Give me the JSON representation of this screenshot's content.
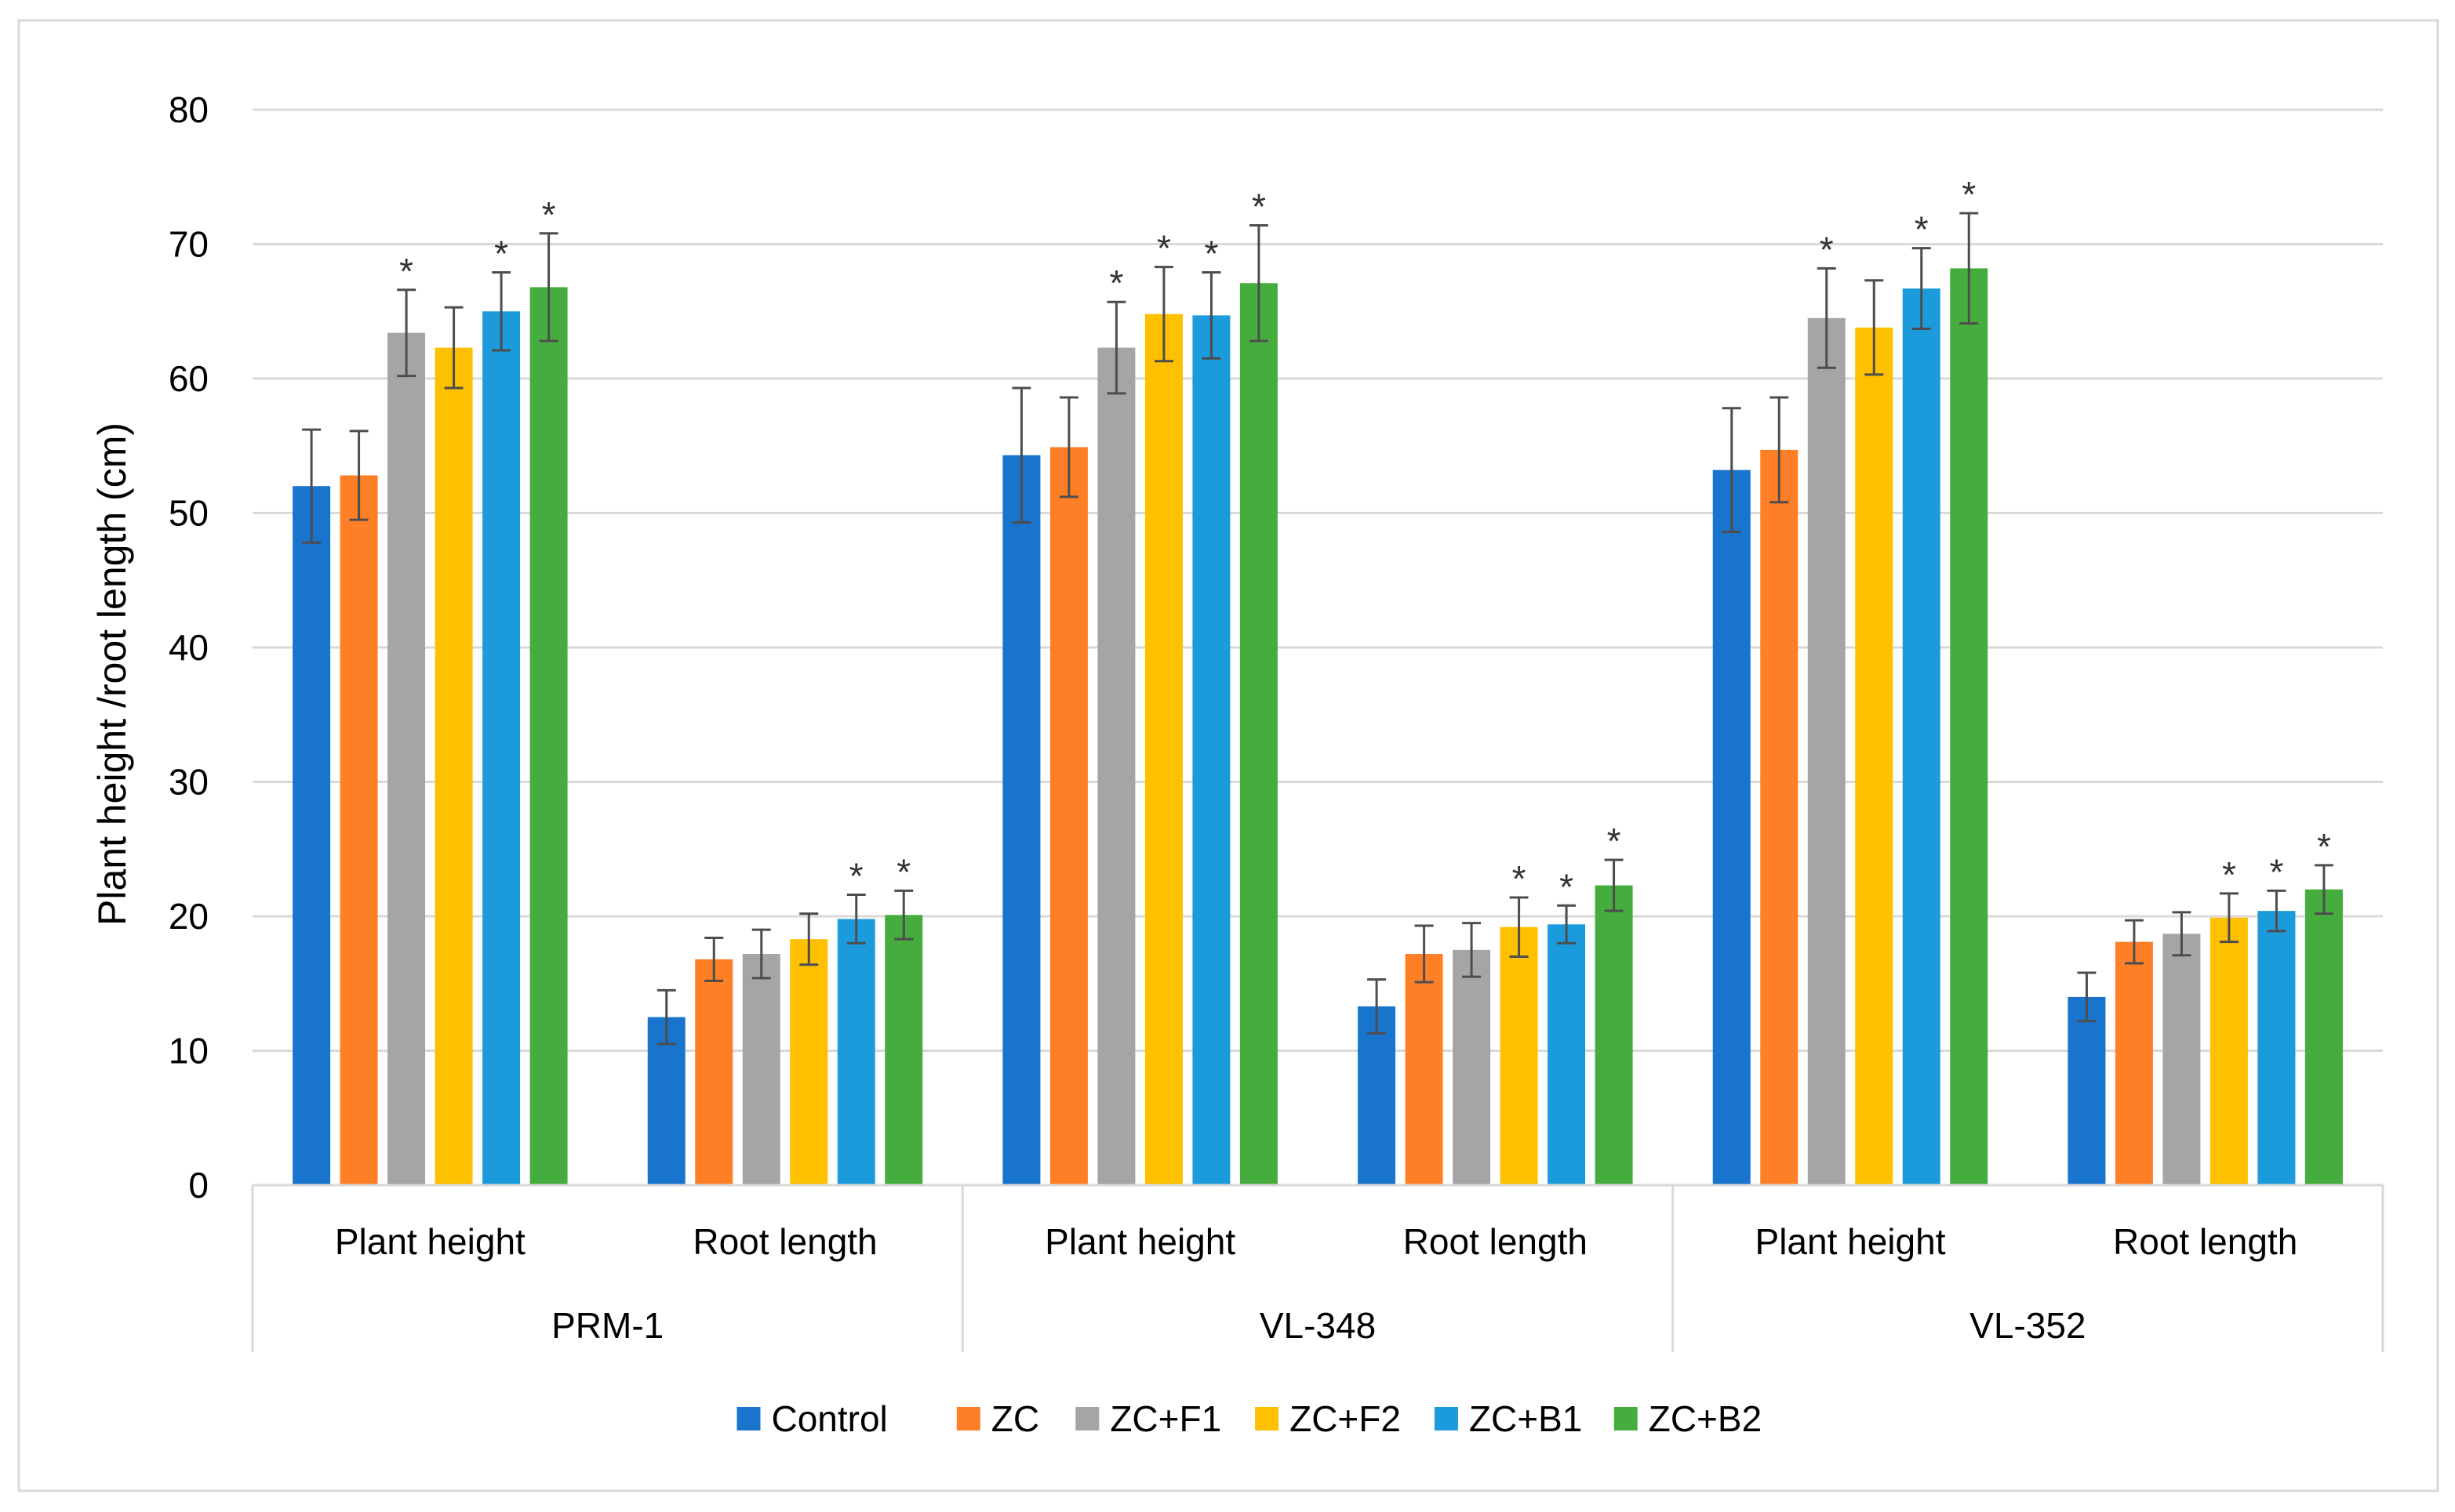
{
  "chart_data": {
    "type": "bar",
    "title": "",
    "xlabel": "",
    "ylabel": "Plant height /root length (cm)",
    "ylim": [
      0,
      80
    ],
    "yticks": [
      0,
      10,
      20,
      30,
      40,
      50,
      60,
      70,
      80
    ],
    "grid": true,
    "legend_position": "bottom",
    "groups": [
      "PRM-1",
      "VL-348",
      "VL-352"
    ],
    "categories": [
      "Plant height",
      "Root length",
      "Plant height",
      "Root length",
      "Plant height",
      "Root length"
    ],
    "significance_marker": "*",
    "series": [
      {
        "name": "Control",
        "color": "#1874CD",
        "values": [
          52.0,
          12.5,
          54.3,
          13.3,
          53.2,
          14.0
        ],
        "errors": [
          4.2,
          2.0,
          5.0,
          2.0,
          4.6,
          1.8
        ],
        "significant": [
          false,
          false,
          false,
          false,
          false,
          false
        ]
      },
      {
        "name": "ZC",
        "color": "#FF7F27",
        "values": [
          52.8,
          16.8,
          54.9,
          17.2,
          54.7,
          18.1
        ],
        "errors": [
          3.3,
          1.6,
          3.7,
          2.1,
          3.9,
          1.6
        ],
        "significant": [
          false,
          false,
          false,
          false,
          false,
          false
        ]
      },
      {
        "name": "ZC+F1",
        "color": "#A5A5A5",
        "values": [
          63.4,
          17.2,
          62.3,
          17.5,
          64.5,
          18.7
        ],
        "errors": [
          3.2,
          1.8,
          3.4,
          2.0,
          3.7,
          1.6
        ],
        "significant": [
          true,
          false,
          true,
          false,
          true,
          false
        ]
      },
      {
        "name": "ZC+F2",
        "color": "#FFC000",
        "values": [
          62.3,
          18.3,
          64.8,
          19.2,
          63.8,
          19.9
        ],
        "errors": [
          3.0,
          1.9,
          3.5,
          2.2,
          3.5,
          1.8
        ],
        "significant": [
          false,
          false,
          true,
          true,
          false,
          true
        ]
      },
      {
        "name": "ZC+B1",
        "color": "#1C9BDC",
        "values": [
          65.0,
          19.8,
          64.7,
          19.4,
          66.7,
          20.4
        ],
        "errors": [
          2.9,
          1.8,
          3.2,
          1.4,
          3.0,
          1.5
        ],
        "significant": [
          true,
          true,
          true,
          true,
          true,
          true
        ]
      },
      {
        "name": "ZC+B2",
        "color": "#45AD3E",
        "values": [
          66.8,
          20.1,
          67.1,
          22.3,
          68.2,
          22.0
        ],
        "errors": [
          4.0,
          1.8,
          4.3,
          1.9,
          4.1,
          1.8
        ],
        "significant": [
          true,
          true,
          true,
          true,
          true,
          true
        ]
      }
    ]
  }
}
